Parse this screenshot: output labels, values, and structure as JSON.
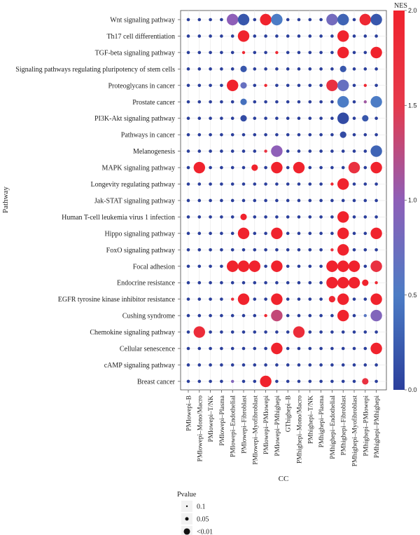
{
  "chart_data": {
    "type": "scatter",
    "ylabel": "Pathway",
    "xlabel": "CC",
    "color_legend": {
      "title": "NES",
      "min": 0.0,
      "max": 2.0,
      "ticks": [
        "0.0",
        "0.5",
        "1.0",
        "1.5",
        "2.0"
      ],
      "colors": [
        "#2b3f9c",
        "#4c7cc5",
        "#8e5fb8",
        "#e53a4c",
        "#f0232d"
      ]
    },
    "size_legend": {
      "title": "Pvalue",
      "labels": [
        "0.1",
        "0.05",
        "<0.01"
      ],
      "levels": [
        1,
        2,
        3
      ]
    },
    "pathways": [
      "Wnt signaling pathway",
      "Th17 cell differentiation",
      "TGF-beta signaling pathway",
      "Signaling pathways regulating pluripotency of stem cells",
      "Proteoglycans in cancer",
      "Prostate cancer",
      "PI3K-Akt signaling pathway",
      "Pathways in cancer",
      "Melanogenesis",
      "MAPK signaling pathway",
      "Longevity regulating pathway",
      "Jak-STAT signaling pathway",
      "Human T-cell leukemia virus 1 infection",
      "Hippo signaling pathway",
      "FoxO signaling pathway",
      "Focal adhesion",
      "Endocrine resistance",
      "EGFR tyrosine kinase inhibitor resistance",
      "Cushing syndrome",
      "Chemokine signaling pathway",
      "Cellular senescence",
      "cAMP signaling pathway",
      "Breast cancer"
    ],
    "cc": [
      "PMlowepi–B",
      "PMlowepi–Mono/Macro",
      "PMlowepi–T/NK",
      "PMlowepi–Plasma",
      "PMlowepi–Endothelial",
      "PMlowepi–Fibroblast",
      "PMlowepi–Myofibroblast",
      "PMlowepi–PMlowepi",
      "PMlowepi–PMhighepi",
      "GThighepi–B",
      "PMhighepi–Mono/Macro",
      "PMhighepi–T/NK",
      "PMhighepi–Plasma",
      "PMhighepi–Endothelial",
      "PMhighepi–Fibroblast",
      "PMhighepi–Myofibroblast",
      "PMhighepi–PMlowepi",
      "PMhighepi–PMhighepi"
    ],
    "points": [
      {
        "p": 0,
        "c": 4,
        "s": 3,
        "nes": 1.0
      },
      {
        "p": 0,
        "c": 5,
        "s": 3,
        "nes": 0.2
      },
      {
        "p": 0,
        "c": 7,
        "s": 3,
        "nes": 2.0
      },
      {
        "p": 0,
        "c": 8,
        "s": 3,
        "nes": 0.5
      },
      {
        "p": 0,
        "c": 13,
        "s": 3,
        "nes": 0.8
      },
      {
        "p": 0,
        "c": 14,
        "s": 3,
        "nes": 0.3
      },
      {
        "p": 0,
        "c": 16,
        "s": 3,
        "nes": 1.9
      },
      {
        "p": 0,
        "c": 17,
        "s": 3,
        "nes": 0.2
      },
      {
        "p": 1,
        "c": 5,
        "s": 3,
        "nes": 2.0
      },
      {
        "p": 1,
        "c": 14,
        "s": 3,
        "nes": 2.0
      },
      {
        "p": 2,
        "c": 5,
        "s": 1,
        "nes": 1.9
      },
      {
        "p": 2,
        "c": 8,
        "s": 1,
        "nes": 1.9
      },
      {
        "p": 2,
        "c": 14,
        "s": 3,
        "nes": 2.0
      },
      {
        "p": 2,
        "c": 17,
        "s": 3,
        "nes": 2.0
      },
      {
        "p": 3,
        "c": 5,
        "s": 2,
        "nes": 0.2
      },
      {
        "p": 3,
        "c": 14,
        "s": 2,
        "nes": 0.2
      },
      {
        "p": 4,
        "c": 4,
        "s": 3,
        "nes": 2.0
      },
      {
        "p": 4,
        "c": 5,
        "s": 2,
        "nes": 0.7
      },
      {
        "p": 4,
        "c": 7,
        "s": 1,
        "nes": 1.9
      },
      {
        "p": 4,
        "c": 13,
        "s": 3,
        "nes": 1.7
      },
      {
        "p": 4,
        "c": 14,
        "s": 3,
        "nes": 0.7
      },
      {
        "p": 4,
        "c": 16,
        "s": 1,
        "nes": 1.9
      },
      {
        "p": 5,
        "c": 5,
        "s": 2,
        "nes": 0.4
      },
      {
        "p": 5,
        "c": 14,
        "s": 3,
        "nes": 0.5
      },
      {
        "p": 5,
        "c": 16,
        "s": 1,
        "nes": 1.1
      },
      {
        "p": 5,
        "c": 17,
        "s": 3,
        "nes": 0.5
      },
      {
        "p": 6,
        "c": 5,
        "s": 2,
        "nes": 0.1
      },
      {
        "p": 6,
        "c": 14,
        "s": 3,
        "nes": 0.1
      },
      {
        "p": 6,
        "c": 16,
        "s": 2,
        "nes": 0.2
      },
      {
        "p": 7,
        "c": 14,
        "s": 2,
        "nes": 0.1
      },
      {
        "p": 8,
        "c": 7,
        "s": 1,
        "nes": 1.7
      },
      {
        "p": 8,
        "c": 8,
        "s": 3,
        "nes": 1.0
      },
      {
        "p": 8,
        "c": 17,
        "s": 3,
        "nes": 0.3
      },
      {
        "p": 9,
        "c": 1,
        "s": 3,
        "nes": 2.0
      },
      {
        "p": 9,
        "c": 6,
        "s": 2,
        "nes": 2.0
      },
      {
        "p": 9,
        "c": 8,
        "s": 3,
        "nes": 2.0
      },
      {
        "p": 9,
        "c": 10,
        "s": 3,
        "nes": 2.0
      },
      {
        "p": 9,
        "c": 15,
        "s": 3,
        "nes": 1.7
      },
      {
        "p": 9,
        "c": 17,
        "s": 3,
        "nes": 2.0
      },
      {
        "p": 10,
        "c": 13,
        "s": 1,
        "nes": 1.9
      },
      {
        "p": 10,
        "c": 14,
        "s": 3,
        "nes": 2.0
      },
      {
        "p": 12,
        "c": 5,
        "s": 2,
        "nes": 2.0
      },
      {
        "p": 12,
        "c": 14,
        "s": 3,
        "nes": 2.0
      },
      {
        "p": 13,
        "c": 5,
        "s": 3,
        "nes": 2.0
      },
      {
        "p": 13,
        "c": 8,
        "s": 3,
        "nes": 2.0
      },
      {
        "p": 13,
        "c": 14,
        "s": 3,
        "nes": 2.0
      },
      {
        "p": 13,
        "c": 17,
        "s": 3,
        "nes": 2.0
      },
      {
        "p": 14,
        "c": 13,
        "s": 1,
        "nes": 1.7
      },
      {
        "p": 14,
        "c": 14,
        "s": 3,
        "nes": 2.0
      },
      {
        "p": 15,
        "c": 4,
        "s": 3,
        "nes": 2.0
      },
      {
        "p": 15,
        "c": 5,
        "s": 3,
        "nes": 2.0
      },
      {
        "p": 15,
        "c": 6,
        "s": 3,
        "nes": 2.0
      },
      {
        "p": 15,
        "c": 8,
        "s": 3,
        "nes": 2.0
      },
      {
        "p": 15,
        "c": 13,
        "s": 3,
        "nes": 2.0
      },
      {
        "p": 15,
        "c": 14,
        "s": 3,
        "nes": 2.0
      },
      {
        "p": 15,
        "c": 15,
        "s": 3,
        "nes": 2.0
      },
      {
        "p": 15,
        "c": 17,
        "s": 3,
        "nes": 1.7
      },
      {
        "p": 16,
        "c": 13,
        "s": 3,
        "nes": 2.0
      },
      {
        "p": 16,
        "c": 14,
        "s": 3,
        "nes": 2.0
      },
      {
        "p": 16,
        "c": 15,
        "s": 3,
        "nes": 2.0
      },
      {
        "p": 16,
        "c": 16,
        "s": 2,
        "nes": 2.0
      },
      {
        "p": 16,
        "c": 17,
        "s": 1,
        "nes": 1.9
      },
      {
        "p": 17,
        "c": 4,
        "s": 1,
        "nes": 1.7
      },
      {
        "p": 17,
        "c": 5,
        "s": 3,
        "nes": 2.0
      },
      {
        "p": 17,
        "c": 8,
        "s": 3,
        "nes": 2.0
      },
      {
        "p": 17,
        "c": 13,
        "s": 2,
        "nes": 1.9
      },
      {
        "p": 17,
        "c": 14,
        "s": 3,
        "nes": 2.0
      },
      {
        "p": 17,
        "c": 17,
        "s": 3,
        "nes": 2.0
      },
      {
        "p": 18,
        "c": 7,
        "s": 1,
        "nes": 1.9
      },
      {
        "p": 18,
        "c": 8,
        "s": 3,
        "nes": 1.3
      },
      {
        "p": 18,
        "c": 14,
        "s": 3,
        "nes": 2.0
      },
      {
        "p": 18,
        "c": 16,
        "s": 1,
        "nes": 0.6
      },
      {
        "p": 18,
        "c": 17,
        "s": 3,
        "nes": 0.9
      },
      {
        "p": 19,
        "c": 1,
        "s": 3,
        "nes": 1.8
      },
      {
        "p": 19,
        "c": 10,
        "s": 3,
        "nes": 1.8
      },
      {
        "p": 20,
        "c": 8,
        "s": 3,
        "nes": 2.0
      },
      {
        "p": 20,
        "c": 17,
        "s": 3,
        "nes": 2.0
      },
      {
        "p": 22,
        "c": 4,
        "s": 1,
        "nes": 0.9
      },
      {
        "p": 22,
        "c": 7,
        "s": 3,
        "nes": 2.0
      },
      {
        "p": 22,
        "c": 16,
        "s": 2,
        "nes": 1.7
      }
    ]
  }
}
